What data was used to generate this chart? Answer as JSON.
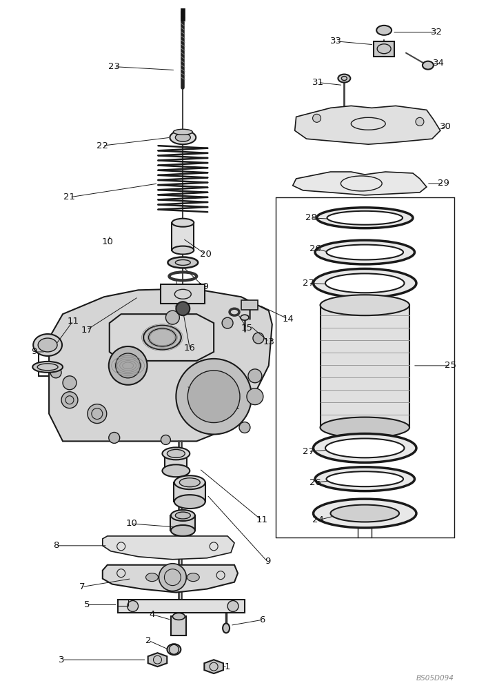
{
  "bg_color": "#ffffff",
  "line_color": "#1a1a1a",
  "label_color": "#111111",
  "watermark": "BS05D094",
  "fig_width": 6.92,
  "fig_height": 10.0,
  "dpi": 100
}
